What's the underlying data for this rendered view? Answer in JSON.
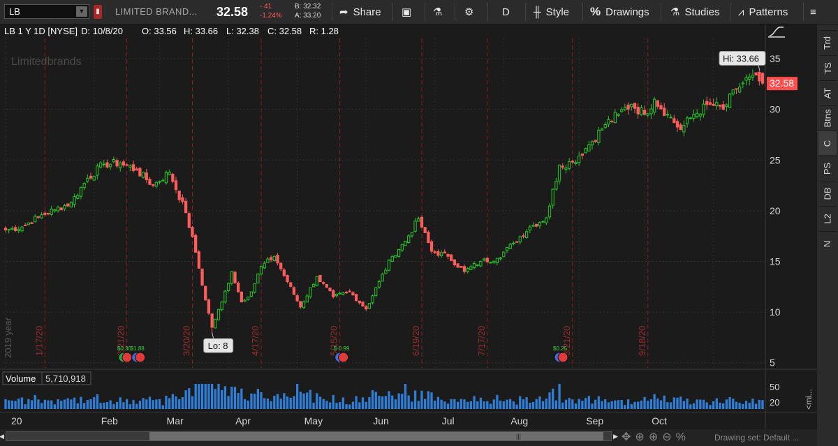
{
  "toolbar": {
    "symbol": "LB",
    "company": "LIMITED BRAND...",
    "last": "32.58",
    "change": "-.41",
    "change_pct": "-1.24%",
    "bid": "B: 32.32",
    "ask": "A: 33.20",
    "buttons": {
      "share": "Share",
      "aggregation": "D",
      "style": "Style",
      "drawings": "Drawings",
      "studies": "Studies",
      "patterns": "Patterns"
    }
  },
  "infobar": {
    "title": "LB 1 Y 1D [NYSE]",
    "date": "D: 10/8/20",
    "open": "O: 33.56",
    "high": "H: 33.66",
    "low": "L: 32.38",
    "close": "C: 32.58",
    "range": "R: 1.28"
  },
  "chart_data": {
    "type": "candlestick",
    "watermark": "Limitedbrands",
    "year_label": "2019 year",
    "y_ticks": [
      5,
      10,
      15,
      20,
      25,
      30,
      35
    ],
    "ylim": [
      4.5,
      37
    ],
    "x_month_labels": [
      "20",
      "Feb",
      "Mar",
      "Apr",
      "May",
      "Jun",
      "Jul",
      "Aug",
      "Sep",
      "Oct"
    ],
    "event_labels": [
      "1/17/20",
      "2/21/20",
      "3/20/20",
      "4/17/20",
      "5/15/20",
      "6/19/20",
      "7/17/20",
      "8/21/20",
      "9/18/20"
    ],
    "dividend_labels": [
      "$0.30",
      "$1.88",
      "$-0.99",
      "$0.25"
    ],
    "high_label": "Hi: 33.66",
    "low_label": "Lo: 8",
    "last_price_label": "32.58",
    "volume_label": "Volume",
    "volume_value": "5,710,918",
    "volume_ticks": [
      "50",
      "20"
    ],
    "volume_unit": "<mi...",
    "anchors": [
      {
        "i": 0,
        "c": 18.1
      },
      {
        "i": 5,
        "c": 18.4
      },
      {
        "i": 10,
        "c": 19.4
      },
      {
        "i": 15,
        "c": 20.1
      },
      {
        "i": 20,
        "c": 20.8
      },
      {
        "i": 25,
        "c": 23.2
      },
      {
        "i": 30,
        "c": 24.6
      },
      {
        "i": 35,
        "c": 24.7
      },
      {
        "i": 40,
        "c": 24.0
      },
      {
        "i": 45,
        "c": 22.5
      },
      {
        "i": 50,
        "c": 23.8
      },
      {
        "i": 55,
        "c": 19.8
      },
      {
        "i": 58,
        "c": 15.9
      },
      {
        "i": 61,
        "c": 11.2
      },
      {
        "i": 63,
        "c": 8.5
      },
      {
        "i": 66,
        "c": 11.0
      },
      {
        "i": 69,
        "c": 14.0
      },
      {
        "i": 72,
        "c": 11.0
      },
      {
        "i": 75,
        "c": 12.0
      },
      {
        "i": 78,
        "c": 14.5
      },
      {
        "i": 82,
        "c": 15.5
      },
      {
        "i": 86,
        "c": 13.0
      },
      {
        "i": 90,
        "c": 10.5
      },
      {
        "i": 95,
        "c": 13.5
      },
      {
        "i": 100,
        "c": 11.5
      },
      {
        "i": 105,
        "c": 12.0
      },
      {
        "i": 110,
        "c": 10.3
      },
      {
        "i": 114,
        "c": 13.0
      },
      {
        "i": 118,
        "c": 15.5
      },
      {
        "i": 122,
        "c": 17.0
      },
      {
        "i": 126,
        "c": 19.2
      },
      {
        "i": 130,
        "c": 16.0
      },
      {
        "i": 135,
        "c": 15.5
      },
      {
        "i": 140,
        "c": 14.0
      },
      {
        "i": 145,
        "c": 15.0
      },
      {
        "i": 150,
        "c": 15.3
      },
      {
        "i": 155,
        "c": 16.8
      },
      {
        "i": 160,
        "c": 18.4
      },
      {
        "i": 165,
        "c": 19.3
      },
      {
        "i": 169,
        "c": 24.5
      },
      {
        "i": 173,
        "c": 24.8
      },
      {
        "i": 178,
        "c": 26.5
      },
      {
        "i": 183,
        "c": 28.5
      },
      {
        "i": 187,
        "c": 29.5
      },
      {
        "i": 191,
        "c": 30.5
      },
      {
        "i": 195,
        "c": 29.5
      },
      {
        "i": 198,
        "c": 31.0
      },
      {
        "i": 202,
        "c": 29.5
      },
      {
        "i": 206,
        "c": 28.0
      },
      {
        "i": 210,
        "c": 29.5
      },
      {
        "i": 215,
        "c": 30.5
      },
      {
        "i": 219,
        "c": 30.0
      },
      {
        "i": 223,
        "c": 32.0
      },
      {
        "i": 227,
        "c": 33.2
      },
      {
        "i": 231,
        "c": 32.6
      }
    ],
    "highlighted_bar": {
      "i": 231,
      "o": 33.56,
      "h": 33.66,
      "l": 32.38,
      "c": 32.58
    }
  },
  "right_panel": {
    "tabs": [
      "Trd",
      "TS",
      "AT",
      "Btns",
      "C",
      "PS",
      "DB",
      "L2",
      "N"
    ],
    "active": "C"
  },
  "bottom": {
    "drawing_set": "Drawing set: Default ..."
  }
}
